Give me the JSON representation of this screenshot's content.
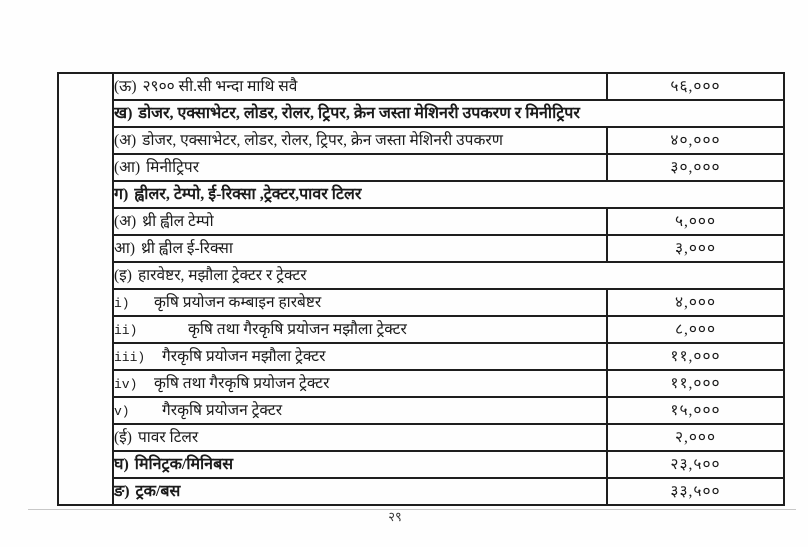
{
  "page_number": "२९",
  "table": {
    "rows": [
      {
        "num": "(ऊ)",
        "label": "२९०० सी.सी भन्दा माथि सवै",
        "value": "५६,०००"
      },
      {
        "num": "ख)",
        "label": "डोजर, एक्साभेटर, लोडर, रोलर, ट्रिपर, क्रेन जस्ता मेशिनरी उपकरण र मिनीट्रिपर",
        "value": ""
      },
      {
        "num": "(अ)",
        "label": "डोजर, एक्साभेटर, लोडर, रोलर, ट्रिपर, क्रेन जस्ता मेशिनरी उपकरण",
        "value": "४०,०००"
      },
      {
        "num": "(आ)",
        "label": "मिनीट्रिपर",
        "value": "३०,०००"
      },
      {
        "num": "ग)",
        "label": "ह्वीलर, टेम्पो, ई-रिक्सा ,ट्रेक्टर,पावर टिलर",
        "value": ""
      },
      {
        "num": "(अ)",
        "label": "थ्री ह्वील टेम्पो",
        "value": "५,०००"
      },
      {
        "num": "आ)",
        "label": "थ्री ह्वील ई-रिक्सा",
        "value": "३,०००"
      },
      {
        "num": "(इ)",
        "label": "हारवेष्टर, मझौला ट्रेक्टर र ट्रेक्टर",
        "value": ""
      },
      {
        "num": "i)",
        "label": "कृषि प्रयोजन कम्बाइन हारबेष्टर",
        "value": "४,०००"
      },
      {
        "num": "ii)",
        "label": "कृषि तथा गैरकृषि प्रयोजन मझौला ट्रेक्टर",
        "value": "८,०००"
      },
      {
        "num": "iii)",
        "label": "गैरकृषि प्रयोजन मझौला ट्रेक्टर",
        "value": "११,०००"
      },
      {
        "num": "iv)",
        "label": "कृषि तथा गैरकृषि प्रयोजन ट्रेक्टर",
        "value": "११,०००"
      },
      {
        "num": "v)",
        "label": "गैरकृषि प्रयोजन ट्रेक्टर",
        "value": "१५,०००"
      },
      {
        "num": "(ई)",
        "label": "पावर टिलर",
        "value": "२,०००"
      },
      {
        "num": "घ)",
        "label": "मिनिट्रक/मिनिबस",
        "value": "२३,५००"
      },
      {
        "num": "ङ)",
        "label": "ट्रक/बस",
        "value": "३३,५००"
      }
    ]
  }
}
